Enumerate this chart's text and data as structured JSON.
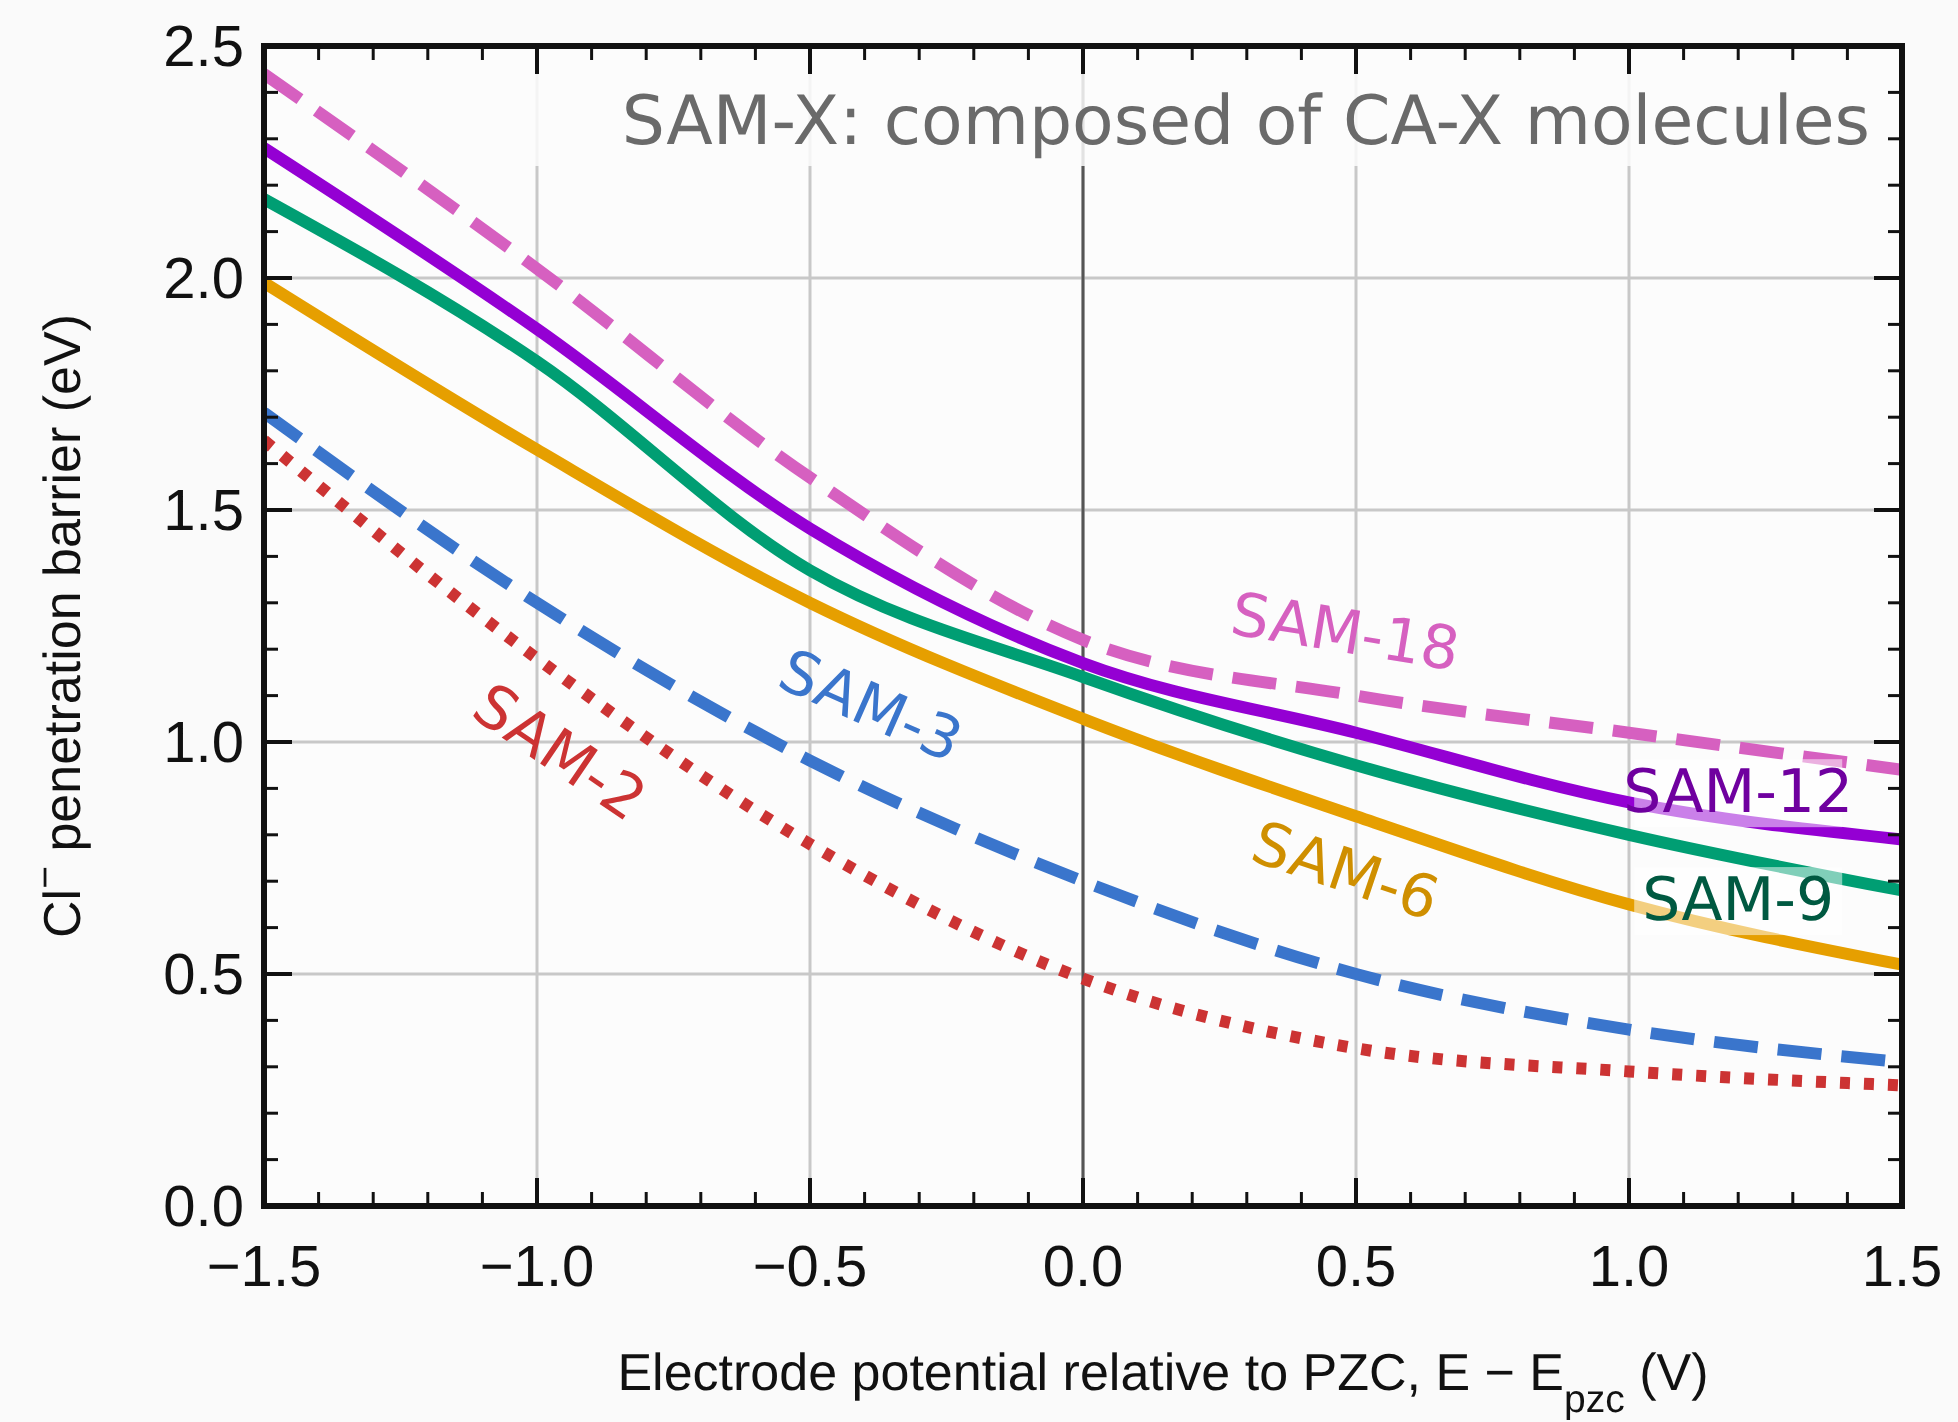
{
  "chart_data": {
    "type": "line",
    "xlabel": "Electrode potential relative to PZC, E − E$_{pzc}$  (V)",
    "ylabel": "Cl$^{−}$ penetration barrier (eV)",
    "annotations": [
      "SAM-X: composed of CA-X molecules"
    ],
    "x": [
      -1.5,
      -1.0,
      -0.5,
      0.0,
      0.5,
      1.0,
      1.5
    ],
    "series": [
      {
        "name": "SAM-18",
        "color": "#d660c0",
        "line_style": "dashed",
        "values": [
          2.44,
          2.02,
          1.57,
          1.22,
          1.1,
          1.02,
          0.94
        ]
      },
      {
        "name": "SAM-12",
        "color": "#9400d3",
        "line_style": "solid",
        "values": [
          2.28,
          1.89,
          1.46,
          1.17,
          1.02,
          0.87,
          0.79
        ]
      },
      {
        "name": "SAM-9",
        "color": "#009e73",
        "line_style": "solid",
        "values": [
          2.17,
          1.82,
          1.37,
          1.14,
          0.95,
          0.8,
          0.68
        ]
      },
      {
        "name": "SAM-6",
        "color": "#e69f00",
        "line_style": "solid",
        "values": [
          1.99,
          1.63,
          1.3,
          1.05,
          0.84,
          0.65,
          0.52
        ]
      },
      {
        "name": "SAM-3",
        "color": "#3a75cc",
        "line_style": "dashed",
        "values": [
          1.71,
          1.3,
          0.96,
          0.7,
          0.5,
          0.38,
          0.31
        ]
      },
      {
        "name": "SAM-2",
        "color": "#cc3333",
        "line_style": "dotted",
        "values": [
          1.65,
          1.18,
          0.78,
          0.49,
          0.34,
          0.29,
          0.26
        ]
      }
    ],
    "xlim": [
      -1.5,
      1.5
    ],
    "xticks": [
      {
        "value": -1.5,
        "label": "−1.5"
      },
      {
        "value": -1.0,
        "label": "−1.0"
      },
      {
        "value": -0.5,
        "label": "−0.5"
      },
      {
        "value": 0,
        "label": "0.0"
      },
      {
        "value": 0.5,
        "label": "0.5"
      },
      {
        "value": 1.0,
        "label": "1.0"
      },
      {
        "value": 1.5,
        "label": "1.5"
      }
    ],
    "ylim": [
      0,
      2.5
    ],
    "yticks": [
      {
        "value": 0,
        "label": "0.0"
      },
      {
        "value": 0.5,
        "label": "0.5"
      },
      {
        "value": 1.0,
        "label": "1.0"
      },
      {
        "value": 1.5,
        "label": "1.5"
      },
      {
        "value": 2.0,
        "label": "2.0"
      },
      {
        "value": 2.5,
        "label": "2.5"
      }
    ],
    "grid": true,
    "marker": "none",
    "ref_lines": [
      {
        "axis": "x",
        "value": 0,
        "color": "#555555"
      }
    ]
  }
}
